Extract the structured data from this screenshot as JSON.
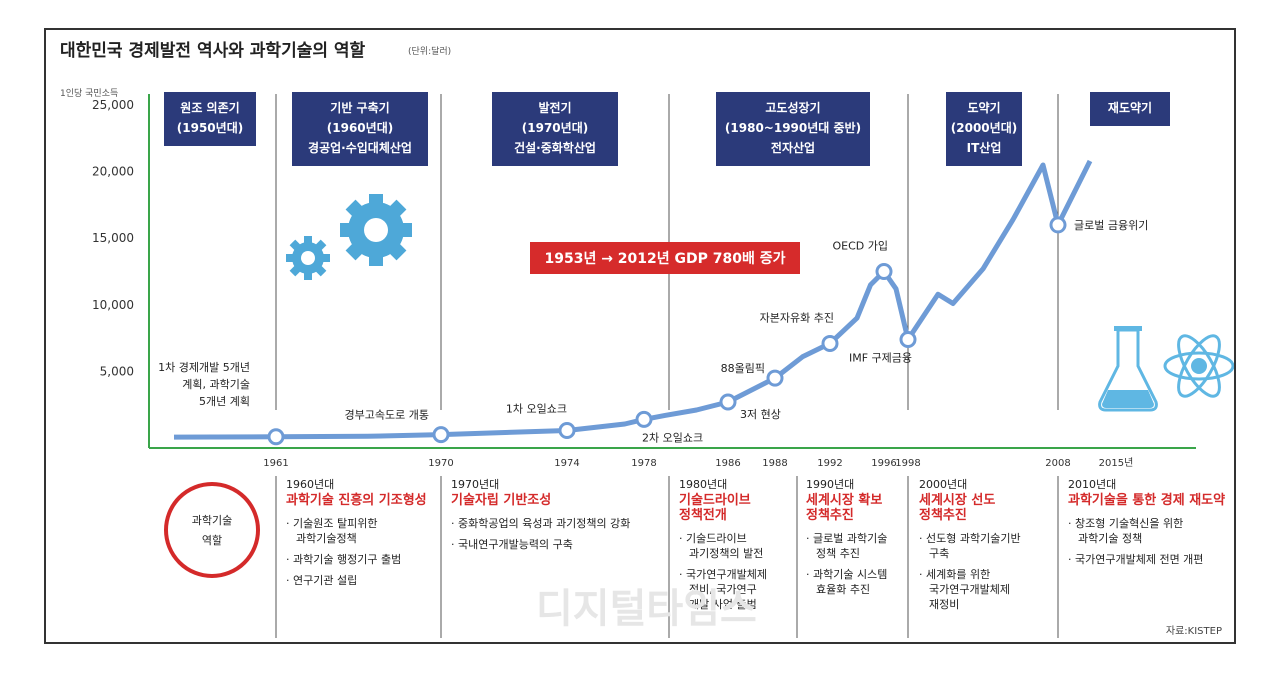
{
  "chart_data": {
    "type": "line",
    "title": "대한민국 경제발전 역사와 과학기술의 역할",
    "unit_note": "(단위:달러)",
    "ylabel": "1인당 국민소득",
    "ylim": [
      0,
      25000
    ],
    "yticks": [
      "25,000",
      "20,000",
      "15,000",
      "10,000",
      "5,000"
    ],
    "ytick_values": [
      25000,
      20000,
      15000,
      10000,
      5000
    ],
    "xticks": [
      "1961",
      "1970",
      "1974",
      "1978",
      "1986",
      "1988",
      "1992",
      "1996",
      "1998",
      "2008",
      "2015년"
    ],
    "xtick_years": [
      1961,
      1970,
      1974,
      1978,
      1986,
      1988,
      1992,
      1996,
      1998,
      2008,
      2015
    ],
    "series": [
      {
        "points": [
          {
            "x": 1953,
            "y": 67
          },
          {
            "x": 1961,
            "y": 91
          },
          {
            "x": 1966,
            "y": 130
          },
          {
            "x": 1970,
            "y": 255
          },
          {
            "x": 1974,
            "y": 560
          },
          {
            "x": 1977,
            "y": 1050
          },
          {
            "x": 1978,
            "y": 1400
          },
          {
            "x": 1980,
            "y": 1700
          },
          {
            "x": 1983,
            "y": 2100
          },
          {
            "x": 1986,
            "y": 2700
          },
          {
            "x": 1988,
            "y": 4500
          },
          {
            "x": 1990,
            "y": 6100
          },
          {
            "x": 1992,
            "y": 7100
          },
          {
            "x": 1994,
            "y": 9000
          },
          {
            "x": 1995,
            "y": 11500
          },
          {
            "x": 1996,
            "y": 12500
          },
          {
            "x": 1997,
            "y": 11200
          },
          {
            "x": 1998,
            "y": 7400
          },
          {
            "x": 2000,
            "y": 10800
          },
          {
            "x": 2001,
            "y": 10100
          },
          {
            "x": 2003,
            "y": 12700
          },
          {
            "x": 2005,
            "y": 16400
          },
          {
            "x": 2007,
            "y": 20500
          },
          {
            "x": 2008,
            "y": 16000
          },
          {
            "x": 2010,
            "y": 20800
          }
        ],
        "highlight_years": [
          1961,
          1970,
          1974,
          1978,
          1986,
          1988,
          1992,
          1996,
          1998,
          2008
        ]
      }
    ],
    "annotations": [
      {
        "year": 1961,
        "lines": [
          "1차 경제개발 5개년",
          "계획, 과학기술",
          "5개년 계획"
        ]
      },
      {
        "year": 1970,
        "lines": [
          "경부고속도로 개통"
        ]
      },
      {
        "year": 1974,
        "lines": [
          "1차 오일쇼크"
        ]
      },
      {
        "year": 1978,
        "lines": [
          "2차 오일쇼크"
        ]
      },
      {
        "year": 1986,
        "lines": [
          "3저 현상"
        ]
      },
      {
        "year": 1988,
        "lines": [
          "88올림픽"
        ]
      },
      {
        "year": 1992,
        "lines": [
          "자본자유화 추진"
        ]
      },
      {
        "year": 1996,
        "lines": [
          "OECD 가입"
        ]
      },
      {
        "year": 1998,
        "lines": [
          "IMF 구제금융"
        ]
      },
      {
        "year": 2008,
        "lines": [
          "글로벌 금융위기"
        ]
      }
    ],
    "banner": "1953년 → 2012년  GDP 780배 증가",
    "periods": [
      {
        "lines": [
          "원조 의존기",
          "(1950년대)"
        ]
      },
      {
        "lines": [
          "기반 구축기",
          "(1960년대)",
          "경공업·수입대체산업"
        ]
      },
      {
        "lines": [
          "발전기",
          "(1970년대)",
          "건설·중화학산업"
        ]
      },
      {
        "lines": [
          "고도성장기",
          "(1980~1990년대 중반)",
          "전자산업"
        ]
      },
      {
        "lines": [
          "도약기",
          "(2000년대)",
          "IT산업"
        ]
      },
      {
        "lines": [
          "재도약기"
        ]
      }
    ]
  },
  "roles": {
    "label_lines": [
      "과학기술",
      "역할"
    ],
    "columns": [
      {
        "year": "1960년대",
        "title_lines": [
          "과학기술 진흥의 기조형성"
        ],
        "items": [
          [
            "기술원조 탈피위한",
            "과학기술정책"
          ],
          [
            "과학기술 행정기구 출범"
          ],
          [
            "연구기관 설립"
          ]
        ]
      },
      {
        "year": "1970년대",
        "title_lines": [
          "기술자립 기반조성"
        ],
        "items": [
          [
            "중화학공업의 육성과 과기정책의 강화"
          ],
          [
            "국내연구개발능력의 구축"
          ]
        ]
      },
      {
        "year": "1980년대",
        "title_lines": [
          "기술드라이브",
          "정책전개"
        ],
        "items": [
          [
            "기술드라이브",
            "과기정책의 발전"
          ],
          [
            "국가연구개발체제",
            "정비, 국가연구",
            "개발 사업 출범"
          ]
        ]
      },
      {
        "year": "1990년대",
        "title_lines": [
          "세계시장 확보",
          "정책추진"
        ],
        "items": [
          [
            "글로벌 과학기술",
            "정책 추진"
          ],
          [
            "과학기술 시스템",
            "효율화 추진"
          ]
        ]
      },
      {
        "year": "2000년대",
        "title_lines": [
          "세계시장 선도",
          "정책추진"
        ],
        "items": [
          [
            "선도형 과학기술기반",
            "구축"
          ],
          [
            "세계화를 위한",
            "국가연구개발체제",
            "재정비"
          ]
        ]
      },
      {
        "year": "2010년대",
        "title_lines": [
          "과학기술을 통한 경제 재도약"
        ],
        "items": [
          [
            "창조형 기술혁신을 위한",
            "과학기술 정책"
          ],
          [
            "국가연구개발체제 전면 개편"
          ]
        ]
      }
    ]
  },
  "source": "자료:KISTEP",
  "watermark": "디지털타임스",
  "colors": {
    "line": "#6e9bd6",
    "axis": "#3aa54a",
    "period_box": "#2b3a7a",
    "banner": "#d62b2b",
    "accent_red": "#d42a2a",
    "gear": "#4ea8d8",
    "flask": "#5fb7e3"
  }
}
